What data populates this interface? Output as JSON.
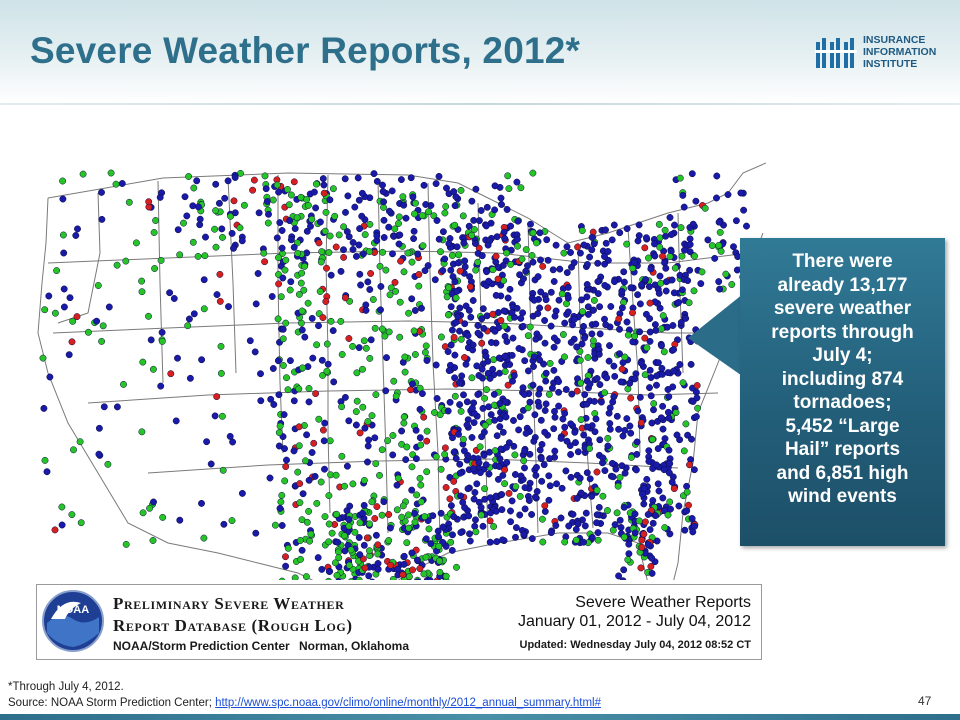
{
  "title": "Severe Weather Reports, 2012*",
  "logo": {
    "line1": "INSURANCE",
    "line2": "INFORMATION",
    "line3": "INSTITUTE",
    "color": "#1f5a82"
  },
  "callout": {
    "lines": [
      "There were",
      "already 13,177",
      "severe weather",
      "reports through",
      "July 4;",
      "including 874",
      "tornadoes;",
      "5,452 “Large",
      "Hail” reports",
      "and 6,851 high",
      "wind events"
    ]
  },
  "map_legend": {
    "db_title_line1": "Preliminary Severe Weather",
    "db_title_line2": "Report Database (Rough Log)",
    "center": "NOAA/Storm Prediction Center",
    "city": "Norman, Oklahoma",
    "report_title": "Severe Weather Reports",
    "date_range": "January 01, 2012 - July 04, 2012",
    "updated": "Updated: Wednesday July 04, 2012 08:52 CT",
    "noaa_badge": "NOAA"
  },
  "map_colors": {
    "high_wind": "#1a1aa8",
    "large_hail": "#27c427",
    "tornado": "#d62020"
  },
  "footnote": "*Through July 4, 2012.",
  "source_prefix": "Source: NOAA Storm Prediction Center; ",
  "source_url": "http://www.spc.noaa.gov/climo/online/monthly/2012_annual_summary.html#",
  "page_number": "47"
}
